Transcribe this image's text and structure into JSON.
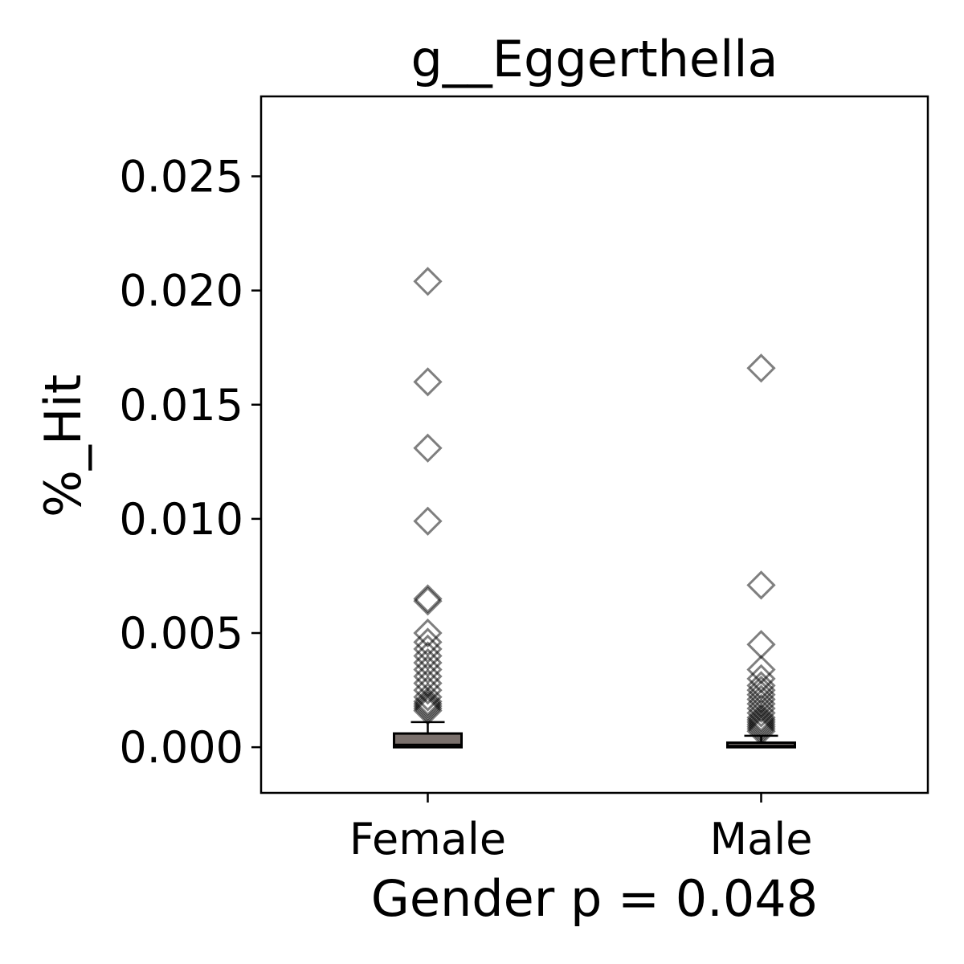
{
  "chart_data": {
    "type": "box",
    "title": "g__Eggerthella",
    "xlabel": "Gender p = 0.048",
    "ylabel": "%_Hit",
    "categories": [
      "Female",
      "Male"
    ],
    "ylim": [
      -0.002,
      0.0285
    ],
    "yticks": [
      "0.000",
      "0.005",
      "0.010",
      "0.015",
      "0.020",
      "0.025"
    ],
    "ytick_values": [
      0.0,
      0.005,
      0.01,
      0.015,
      0.02,
      0.025
    ],
    "grid": false,
    "legend": "none",
    "box_fill_colors": [
      "#7a706c",
      "#6b6563"
    ],
    "flier_marker": "diamond",
    "boxes": [
      {
        "name": "Female",
        "whisker_low": 0.0,
        "q1": 0.0,
        "median": 0.0001,
        "q3": 0.0006,
        "whisker_high": 0.0011,
        "fliers": [
          0.0204,
          0.016,
          0.0131,
          0.0099,
          0.0065,
          0.0064,
          0.005,
          0.0046,
          0.0043,
          0.004,
          0.0037,
          0.0034,
          0.0031,
          0.0028,
          0.0025,
          0.0022,
          0.002,
          0.0019,
          0.0018,
          0.0017,
          0.0016
        ]
      },
      {
        "name": "Male",
        "whisker_low": 0.0,
        "q1": 0.0,
        "median": 5e-05,
        "q3": 0.0002,
        "whisker_high": 0.0005,
        "fliers": [
          0.0166,
          0.0071,
          0.0045,
          0.0034,
          0.003,
          0.0027,
          0.0025,
          0.0023,
          0.0021,
          0.0019,
          0.0017,
          0.0015,
          0.0013,
          0.0012,
          0.0011,
          0.001,
          0.0009,
          0.0008,
          0.0007
        ]
      }
    ]
  }
}
